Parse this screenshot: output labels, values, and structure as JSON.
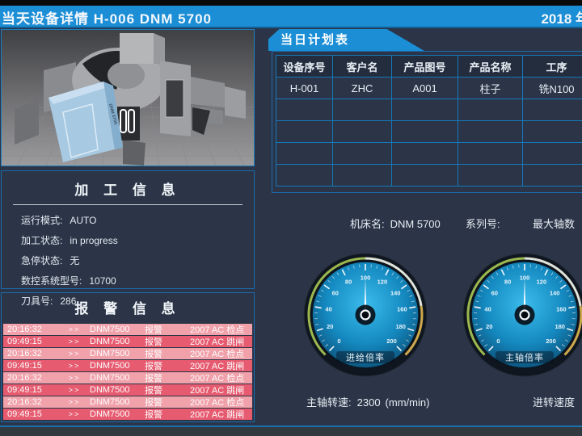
{
  "header": {
    "title_left": "当天设备详情  H-006   DNM 5700",
    "title_right": "2018 年"
  },
  "machine_image": {
    "label": "DNM 5700"
  },
  "processing_info": {
    "title": "加 工 信 息",
    "fields": [
      {
        "label": "运行模式:",
        "value": "AUTO"
      },
      {
        "label": "加工状态:",
        "value": "in progress"
      },
      {
        "label": "急停状态:",
        "value": "无"
      },
      {
        "label": "数控系统型号:",
        "value": "10700"
      },
      {
        "label": "刀具号:",
        "value": "286"
      }
    ]
  },
  "alarm_info": {
    "title": "报 警 信 息",
    "rows": [
      {
        "time": "20:16:32",
        "sep": ">>",
        "device": "DNM7500",
        "type": "报警",
        "message": "2007  AC 检点",
        "variant": "light"
      },
      {
        "time": "09:49:15",
        "sep": ">>",
        "device": "DNM7500",
        "type": "报警",
        "message": "2007  AC 跳闸",
        "variant": "dark"
      },
      {
        "time": "20:16:32",
        "sep": ">>",
        "device": "DNM7500",
        "type": "报警",
        "message": "2007  AC 检点",
        "variant": "light"
      },
      {
        "time": "09:49:15",
        "sep": ">>",
        "device": "DNM7500",
        "type": "报警",
        "message": "2007  AC 跳闸",
        "variant": "dark"
      },
      {
        "time": "20:16:32",
        "sep": ">>",
        "device": "DNM7500",
        "type": "报警",
        "message": "2007  AC 检点",
        "variant": "light"
      },
      {
        "time": "09:49:15",
        "sep": ">>",
        "device": "DNM7500",
        "type": "报警",
        "message": "2007  AC 跳闸",
        "variant": "dark"
      },
      {
        "time": "20:16:32",
        "sep": ">>",
        "device": "DNM7500",
        "type": "报警",
        "message": "2007  AC 检点",
        "variant": "light"
      },
      {
        "time": "09:49:15",
        "sep": ">>",
        "device": "DNM7500",
        "type": "报警",
        "message": "2007  AC 跳闸",
        "variant": "dark"
      }
    ]
  },
  "plan_table": {
    "tab_label": "当日计划表",
    "headers": [
      "设备序号",
      "客户名",
      "产品图号",
      "产品名称",
      "工序"
    ],
    "rows": [
      [
        "H-001",
        "ZHC",
        "A001",
        "柱子",
        "铣N100"
      ],
      [
        "",
        "",
        "",
        "",
        ""
      ],
      [
        "",
        "",
        "",
        "",
        ""
      ],
      [
        "",
        "",
        "",
        "",
        ""
      ],
      [
        "",
        "",
        "",
        "",
        ""
      ]
    ]
  },
  "machine_meta": {
    "name_label": "机床名:",
    "name_value": "DNM 5700",
    "serial_label": "系列号:",
    "axes_label": "最大轴数"
  },
  "gauges": [
    {
      "name": "feed-override",
      "label": "进给倍率",
      "min": 0,
      "max": 200,
      "value": 100,
      "major_step": 20,
      "minor_step": 5
    },
    {
      "name": "spindle-override",
      "label": "主轴倍率",
      "min": 0,
      "max": 200,
      "value": 100,
      "major_step": 20,
      "minor_step": 5
    }
  ],
  "bottom_info": {
    "spindle_label": "主轴转速:",
    "spindle_value": "2300",
    "spindle_unit": "(mm/min)",
    "feed_label": "进转速度"
  },
  "colors": {
    "accent_blue": "#1b8ed6",
    "panel_border": "#1a6cae",
    "grid_blue": "#1478bb",
    "background": "#2b3547",
    "alarm_light": "#f0a1aa",
    "alarm_dark": "#e65b70",
    "gauge_face_center": "#3cbcec",
    "gauge_face_edge": "#0b466b",
    "arc_green": "#9cb94f",
    "arc_pale": "#e0e4da",
    "arc_yellow": "#cda94d"
  }
}
